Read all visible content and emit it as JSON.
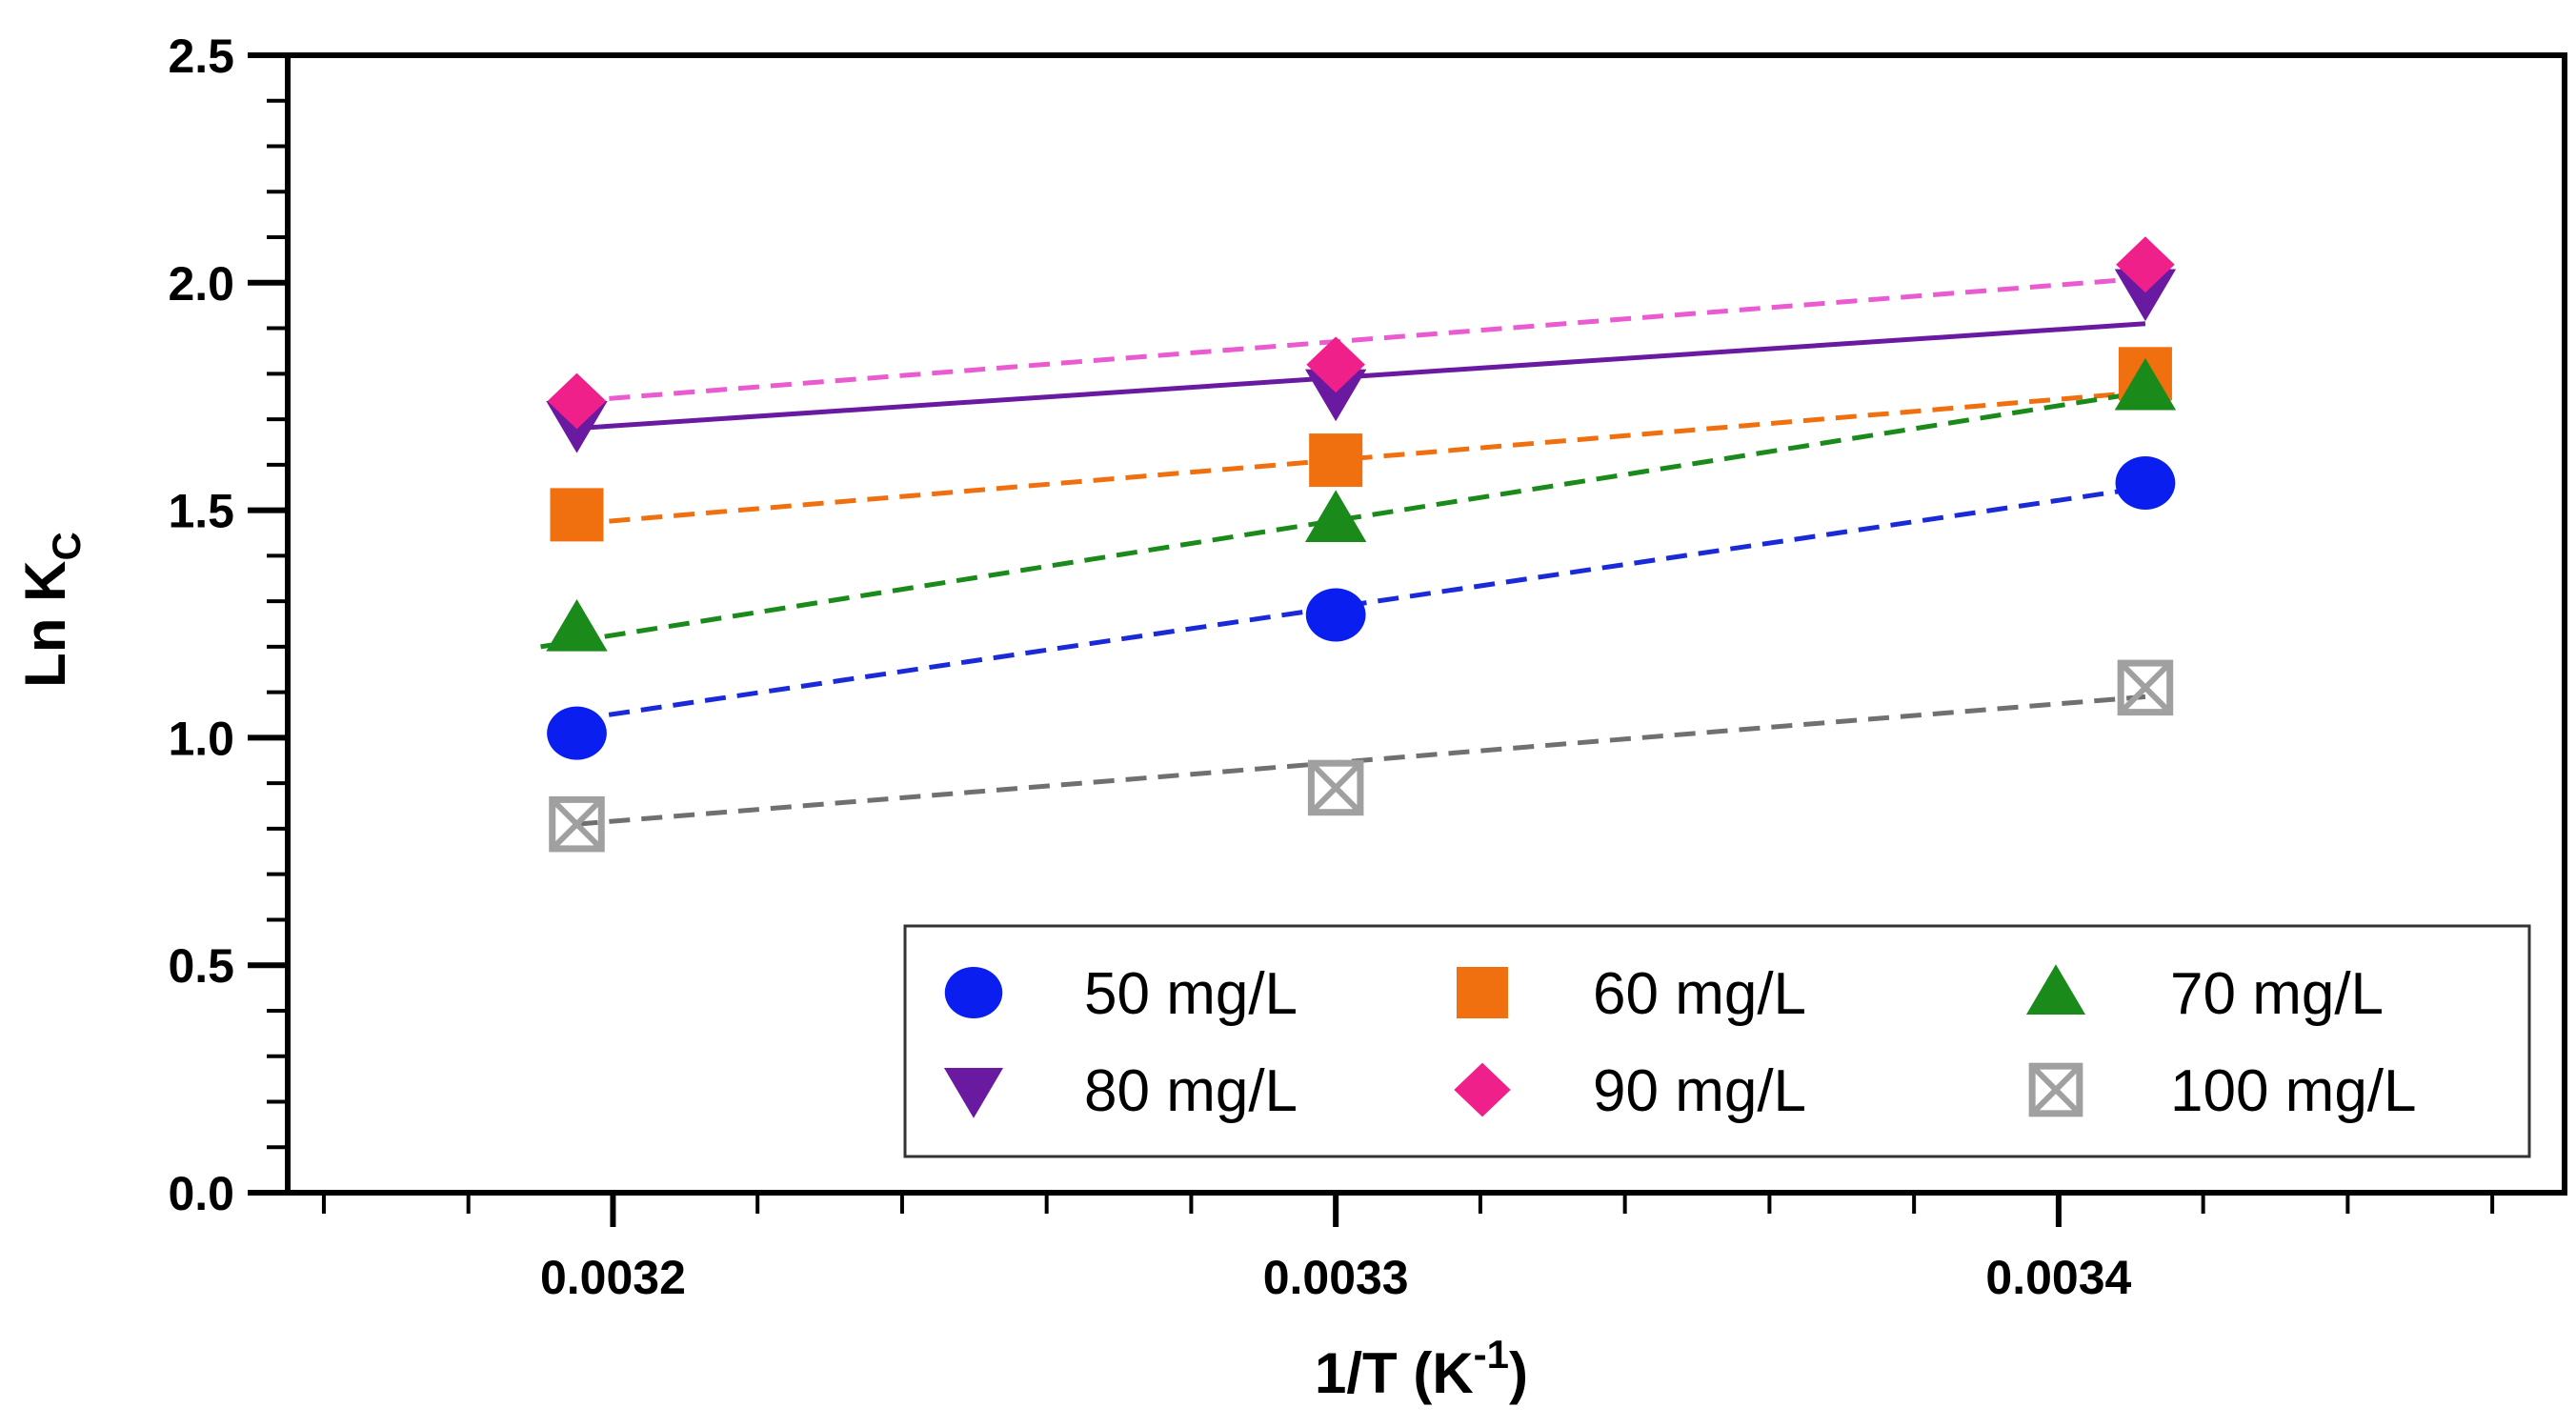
{
  "chart_data": {
    "type": "scatter",
    "xlabel": "1/T (K",
    "xlabel_sup": "-1",
    "xlabel_end": ")",
    "ylabel": "Ln K",
    "ylabel_sub": "C",
    "xlim": [
      0.003155,
      0.00347
    ],
    "ylim": [
      0,
      2.5
    ],
    "xticks": [
      "0.0032",
      "0.0033",
      "0.0034"
    ],
    "xtick_values": [
      0.0032,
      0.0033,
      0.0034
    ],
    "yticks": [
      "0.0",
      "0.5",
      "1.0",
      "1.5",
      "2.0",
      "2.5"
    ],
    "ytick_values": [
      0,
      0.5,
      1.0,
      1.5,
      2.0,
      2.5
    ],
    "grid": false,
    "legend_position": "bottom-right",
    "series": [
      {
        "name": "50 mg/L",
        "marker": "circle",
        "color": "#0a1ef0",
        "line_color": "#1a2ad8",
        "line_style": "dashed",
        "x": [
          0.003195,
          0.0033,
          0.003412
        ],
        "y": [
          1.01,
          1.27,
          1.56
        ],
        "fit_x": [
          0.003195,
          0.003412
        ],
        "fit_y": [
          1.04,
          1.55
        ]
      },
      {
        "name": "60 mg/L",
        "marker": "square",
        "color": "#f07010",
        "line_color": "#f07010",
        "line_style": "dashed",
        "x": [
          0.003195,
          0.0033,
          0.003412
        ],
        "y": [
          1.49,
          1.61,
          1.8
        ],
        "fit_x": [
          0.003195,
          0.003412
        ],
        "fit_y": [
          1.47,
          1.76
        ]
      },
      {
        "name": "70 mg/L",
        "marker": "triangle-up",
        "color": "#1a8a1a",
        "line_color": "#1a8a1a",
        "line_style": "dashed",
        "x": [
          0.003195,
          0.0033,
          0.003412
        ],
        "y": [
          1.24,
          1.48,
          1.77
        ],
        "fit_x": [
          0.00319,
          0.003412
        ],
        "fit_y": [
          1.2,
          1.76
        ]
      },
      {
        "name": "80 mg/L",
        "marker": "triangle-down",
        "color": "#6a1aa0",
        "line_color": "#6a1aa0",
        "line_style": "solid",
        "x": [
          0.003195,
          0.0033,
          0.003412
        ],
        "y": [
          1.69,
          1.76,
          1.98
        ],
        "fit_x": [
          0.003195,
          0.003412
        ],
        "fit_y": [
          1.68,
          1.91
        ]
      },
      {
        "name": "90 mg/L",
        "marker": "diamond",
        "color": "#f0208a",
        "line_color": "#ea5ad0",
        "line_style": "dashed",
        "x": [
          0.003195,
          0.0033,
          0.003412
        ],
        "y": [
          1.74,
          1.82,
          2.04
        ],
        "fit_x": [
          0.003195,
          0.003412
        ],
        "fit_y": [
          1.74,
          2.01
        ]
      },
      {
        "name": "100 mg/L",
        "marker": "square-x",
        "color": "#a0a0a0",
        "line_color": "#707070",
        "line_style": "dashed",
        "x": [
          0.003195,
          0.0033,
          0.003412
        ],
        "y": [
          0.81,
          0.89,
          1.11
        ],
        "fit_x": [
          0.003195,
          0.003412
        ],
        "fit_y": [
          0.81,
          1.09
        ]
      }
    ]
  }
}
